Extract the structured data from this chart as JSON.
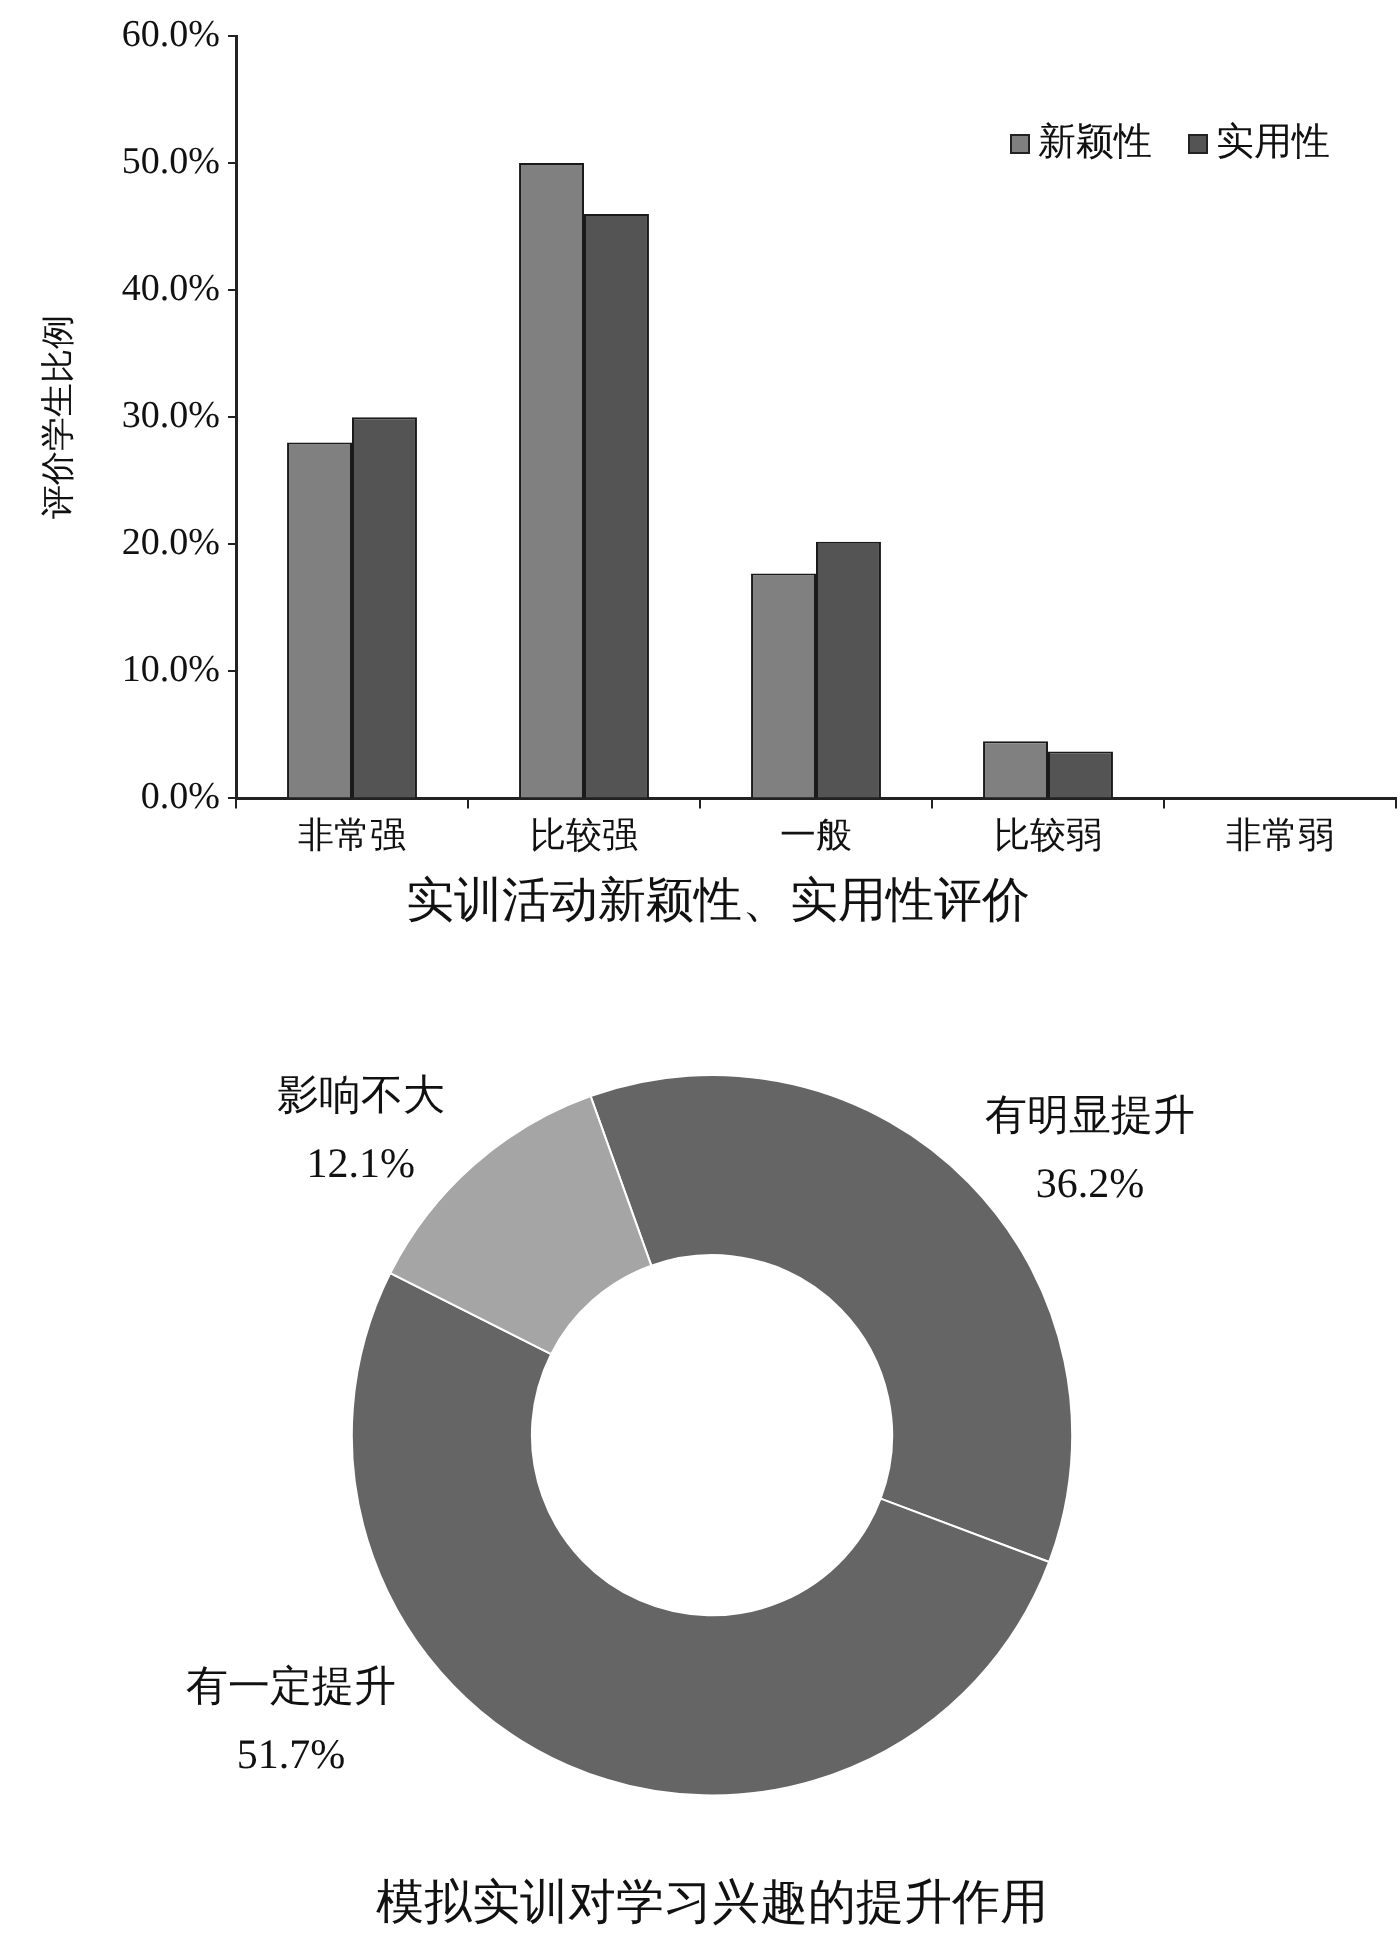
{
  "chart_data": [
    {
      "type": "bar",
      "title": "实训活动新颖性、实用性评价",
      "ylabel": "评价学生比例",
      "categories": [
        "非常强",
        "比较强",
        "一般",
        "比较弱",
        "非常弱"
      ],
      "series": [
        {
          "name": "新颖性",
          "color": "#808080",
          "values": [
            28.0,
            50.0,
            17.7,
            4.5,
            0
          ]
        },
        {
          "name": "实用性",
          "color": "#545454",
          "values": [
            30.0,
            46.0,
            20.2,
            3.7,
            0
          ]
        }
      ],
      "ylim": [
        0,
        60
      ],
      "yticks": [
        {
          "value": 0,
          "label": "0.0%"
        },
        {
          "value": 10,
          "label": "10.0%"
        },
        {
          "value": 20,
          "label": "20.0%"
        },
        {
          "value": 30,
          "label": "30.0%"
        },
        {
          "value": 40,
          "label": "40.0%"
        },
        {
          "value": 50,
          "label": "50.0%"
        },
        {
          "value": 60,
          "label": "60.0%"
        }
      ],
      "legend": "top right"
    },
    {
      "type": "donut",
      "title": "模拟实训对学习兴趣的提升作用",
      "categories": [
        "有明显提升",
        "有一定提升",
        "影响不大"
      ],
      "values": [
        36.2,
        51.7,
        12.1
      ],
      "colors": [
        "#656565",
        "#656565",
        "#a5a5a5"
      ],
      "value_labels": [
        "36.2%",
        "51.7%",
        "12.1%"
      ]
    }
  ]
}
